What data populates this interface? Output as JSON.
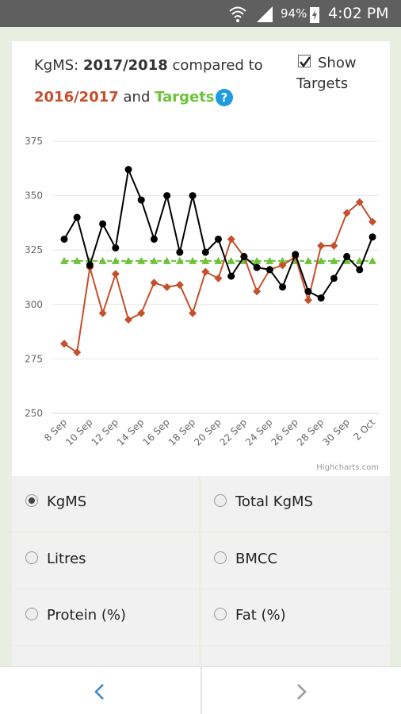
{
  "status_bar": {
    "battery": "94%",
    "time": "4:02 PM"
  },
  "header": {
    "prefix": "KgMS:",
    "middle": "compared to",
    "and": "and",
    "help": "?"
  },
  "targets_toggle": {
    "label_1": "Show",
    "label_2": "Targets",
    "checked": true
  },
  "chart_data": {
    "type": "line",
    "categories": [
      "8 Sep",
      null,
      "10 Sep",
      null,
      "12 Sep",
      null,
      "14 Sep",
      null,
      "16 Sep",
      null,
      "18 Sep",
      null,
      "20 Sep",
      null,
      "22 Sep",
      null,
      "24 Sep",
      null,
      "26 Sep",
      null,
      "28 Sep",
      null,
      "30 Sep",
      null,
      "2 Oct"
    ],
    "series": [
      {
        "name": "2017/2018",
        "color": "#000000",
        "marker": "circle",
        "values": [
          330,
          340,
          318,
          337,
          326,
          362,
          348,
          330,
          350,
          324,
          350,
          324,
          330,
          313,
          322,
          317,
          316,
          308,
          323,
          306,
          303,
          312,
          322,
          316,
          331
        ]
      },
      {
        "name": "2016/2017",
        "color": "#c4502c",
        "marker": "diamond",
        "values": [
          282,
          278,
          317,
          296,
          314,
          293,
          296,
          310,
          308,
          309,
          296,
          315,
          312,
          330,
          322,
          306,
          316,
          318,
          322,
          302,
          327,
          327,
          342,
          347,
          338
        ]
      },
      {
        "name": "Targets",
        "color": "#6cc33a",
        "marker": "triangle",
        "dashed": true,
        "values": [
          320,
          320,
          320,
          320,
          320,
          320,
          320,
          320,
          320,
          320,
          320,
          320,
          320,
          320,
          320,
          320,
          320,
          320,
          320,
          320,
          320,
          320,
          320,
          320,
          320
        ]
      }
    ],
    "ylim": [
      250,
      375
    ],
    "yticks": [
      250,
      275,
      300,
      325,
      350,
      375
    ],
    "grid": true,
    "credit": "Highcharts.com"
  },
  "options": [
    {
      "label": "KgMS",
      "selected": true
    },
    {
      "label": "Total KgMS",
      "selected": false
    },
    {
      "label": "Litres",
      "selected": false
    },
    {
      "label": "BMCC",
      "selected": false
    },
    {
      "label": "Protein (%)",
      "selected": false
    },
    {
      "label": "Fat (%)",
      "selected": false
    }
  ]
}
